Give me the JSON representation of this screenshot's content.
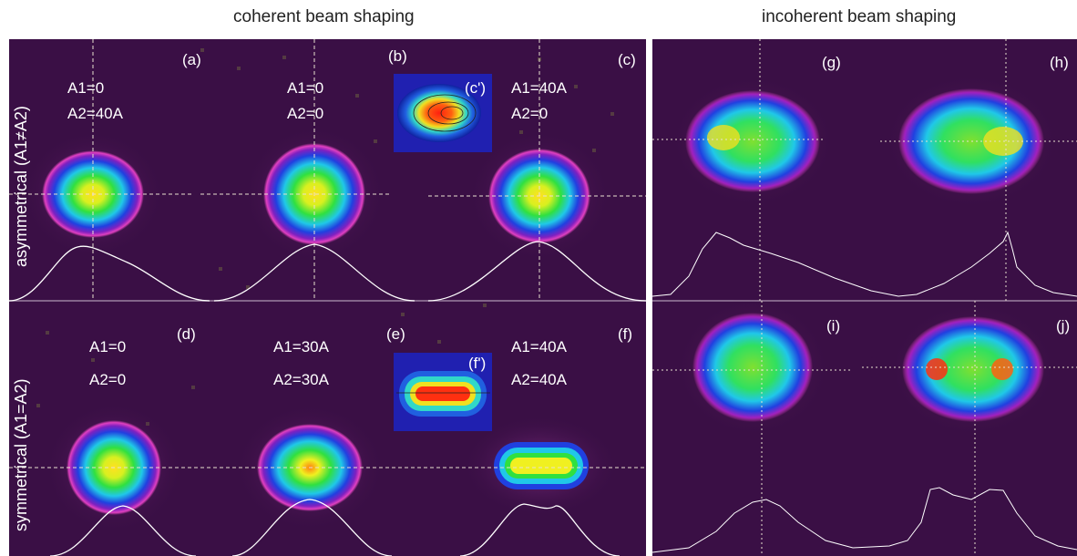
{
  "titles": {
    "coherent": "coherent beam shaping",
    "incoherent": "incoherent beam shaping"
  },
  "row_labels": {
    "top": "asymmetrical (A1≠A2)",
    "bottom": "symmetrical (A1=A2)"
  },
  "panels": {
    "a": {
      "tag": "(a)",
      "a1": "A1=0",
      "a2": "A2=40A"
    },
    "b": {
      "tag": "(b)",
      "a1": "A1=0",
      "a2": "A2=0"
    },
    "c": {
      "tag": "(c)",
      "a1": "A1=40A",
      "a2": "A2=0"
    },
    "c_prime": {
      "tag": "(c')"
    },
    "d": {
      "tag": "(d)",
      "a1": "A1=0",
      "a2": "A2=0"
    },
    "e": {
      "tag": "(e)",
      "a1": "A1=30A",
      "a2": "A2=30A"
    },
    "f": {
      "tag": "(f)",
      "a1": "A1=40A",
      "a2": "A2=40A"
    },
    "f_prime": {
      "tag": "(f')"
    },
    "g": {
      "tag": "(g)"
    },
    "h": {
      "tag": "(h)"
    },
    "i": {
      "tag": "(i)"
    },
    "j": {
      "tag": "(j)"
    }
  },
  "colors": {
    "background": "#3a0f45",
    "beam_edge": "#e040c0",
    "beam_blue": "#2040e0",
    "beam_cyan": "#20c8e8",
    "beam_green": "#30e040",
    "beam_yellow": "#f0f020",
    "beam_red": "#ff3010"
  }
}
